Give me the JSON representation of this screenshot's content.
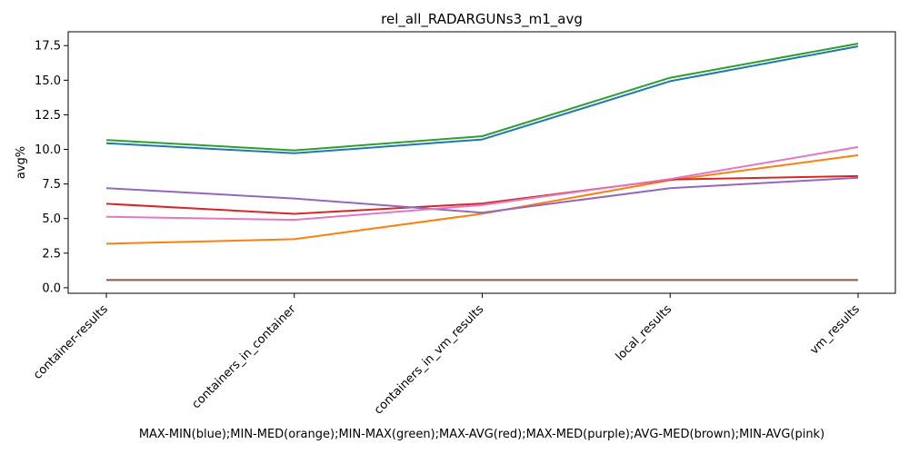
{
  "chart_data": {
    "type": "line",
    "title": "rel_all_RADARGUNs3_m1_avg",
    "ylabel": "avg%",
    "xlabel": "MAX-MIN(blue);MIN-MED(orange);MIN-MAX(green);MAX-AVG(red);MAX-MED(purple);AVG-MED(brown);MIN-AVG(pink)",
    "categories": [
      "container-results",
      "containers_in_container",
      "containers_in_vm_results",
      "local_results",
      "vm_results"
    ],
    "ylim": [
      -0.4,
      18.5
    ],
    "yticks": [
      0.0,
      2.5,
      5.0,
      7.5,
      10.0,
      12.5,
      15.0,
      17.5
    ],
    "ytick_labels": [
      "0.0",
      "2.5",
      "5.0",
      "7.5",
      "10.0",
      "12.5",
      "15.0",
      "17.5"
    ],
    "grid": false,
    "series": [
      {
        "values": [
          10.45,
          9.72,
          10.72,
          14.93,
          17.45
        ],
        "color": "#1f77b4"
      },
      {
        "values": [
          3.18,
          3.51,
          5.35,
          7.78,
          9.58
        ],
        "color": "#ff7f0e"
      },
      {
        "values": [
          10.68,
          9.93,
          10.95,
          15.18,
          17.65
        ],
        "color": "#2ca02c"
      },
      {
        "values": [
          6.07,
          5.34,
          6.09,
          7.82,
          8.07
        ],
        "color": "#d62728"
      },
      {
        "values": [
          7.2,
          6.45,
          5.43,
          7.2,
          7.95
        ],
        "color": "#9467bd"
      },
      {
        "values": [
          0.56,
          0.56,
          0.56,
          0.56,
          0.56
        ],
        "color": "#8c564b"
      },
      {
        "values": [
          5.13,
          4.91,
          5.98,
          7.86,
          10.17
        ],
        "color": "#e377c2"
      }
    ]
  }
}
